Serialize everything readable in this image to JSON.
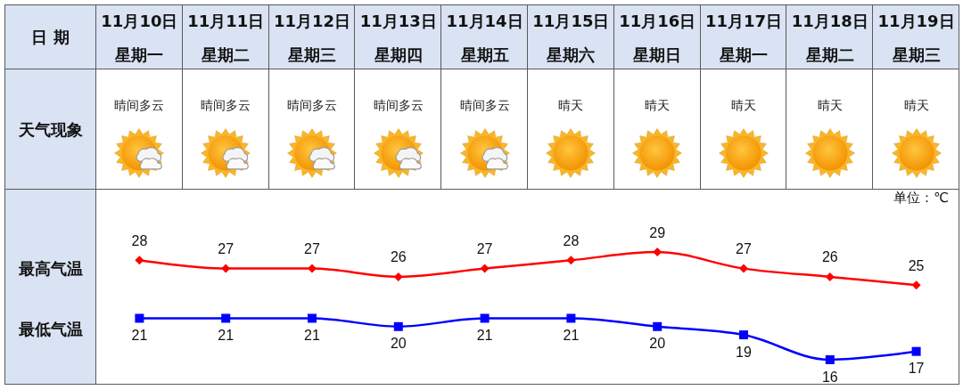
{
  "chart_data": [
    {
      "type": "other",
      "categories": [
        "11月10日星期一",
        "11月11日星期二",
        "11月12日星期三",
        "11月13日星期四",
        "11月14日星期五",
        "11月15日星期六",
        "11月16日星期日",
        "11月17日星期一",
        "11月18日星期二",
        "11月19日星期三"
      ],
      "annotations": [
        "日 期",
        "天气现象",
        "晴间多云",
        "晴间多云",
        "晴间多云",
        "晴间多云",
        "晴间多云",
        "晴天",
        "晴天",
        "晴天",
        "晴天",
        "晴天"
      ]
    },
    {
      "type": "line",
      "ylabel": "单位：℃",
      "tick_labels": false,
      "categories": [
        null,
        null,
        null,
        null,
        null,
        null,
        null,
        null,
        null,
        null
      ],
      "series": [
        {
          "color": "#ff0000",
          "marker": "diamond",
          "values": [
            28,
            27,
            27,
            26,
            27,
            28,
            29,
            27,
            26,
            25
          ]
        },
        {
          "color": "#0000ff",
          "marker": "square",
          "values": [
            21,
            21,
            21,
            20,
            21,
            21,
            20,
            19,
            16,
            17
          ]
        }
      ],
      "data_labels": true,
      "annotations": [
        "最高气温",
        "最低气温"
      ]
    }
  ]
}
